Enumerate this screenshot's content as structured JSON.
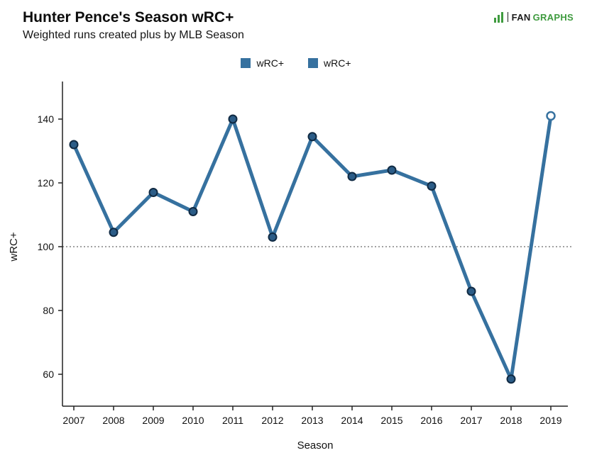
{
  "header": {
    "title": "Hunter Pence's Season wRC+",
    "subtitle": "Weighted runs created plus by MLB Season"
  },
  "logo": {
    "fan": "FAN",
    "graphs": "GRAPHS",
    "icon": "leaf-bars-icon",
    "green": "#3f9b3f"
  },
  "legend": {
    "items": [
      {
        "label": "wRC+"
      },
      {
        "label": "wRC+"
      }
    ]
  },
  "chart_data": {
    "type": "line",
    "title": "Hunter Pence's Season wRC+",
    "subtitle": "Weighted runs created plus by MLB Season",
    "xlabel": "Season",
    "ylabel": "wRC+",
    "x": [
      2007,
      2008,
      2009,
      2010,
      2011,
      2012,
      2013,
      2014,
      2015,
      2016,
      2017,
      2018,
      2019
    ],
    "series": [
      {
        "name": "wRC+",
        "values": [
          132,
          104.5,
          117,
          111,
          140,
          103,
          134.5,
          122,
          124,
          119,
          86,
          58.5,
          141
        ]
      }
    ],
    "yticks": [
      60,
      80,
      100,
      120,
      140
    ],
    "ylim": [
      50,
      150
    ],
    "reference_line": 100,
    "last_point_open": true,
    "grid": "off",
    "legend_position": "top",
    "colors": {
      "line": "#36719f",
      "marker_fill": "#2b5c87",
      "marker_edge": "#102a43",
      "last_marker_fill": "#ffffff",
      "axis": "#222222",
      "reference": "#444444"
    }
  }
}
